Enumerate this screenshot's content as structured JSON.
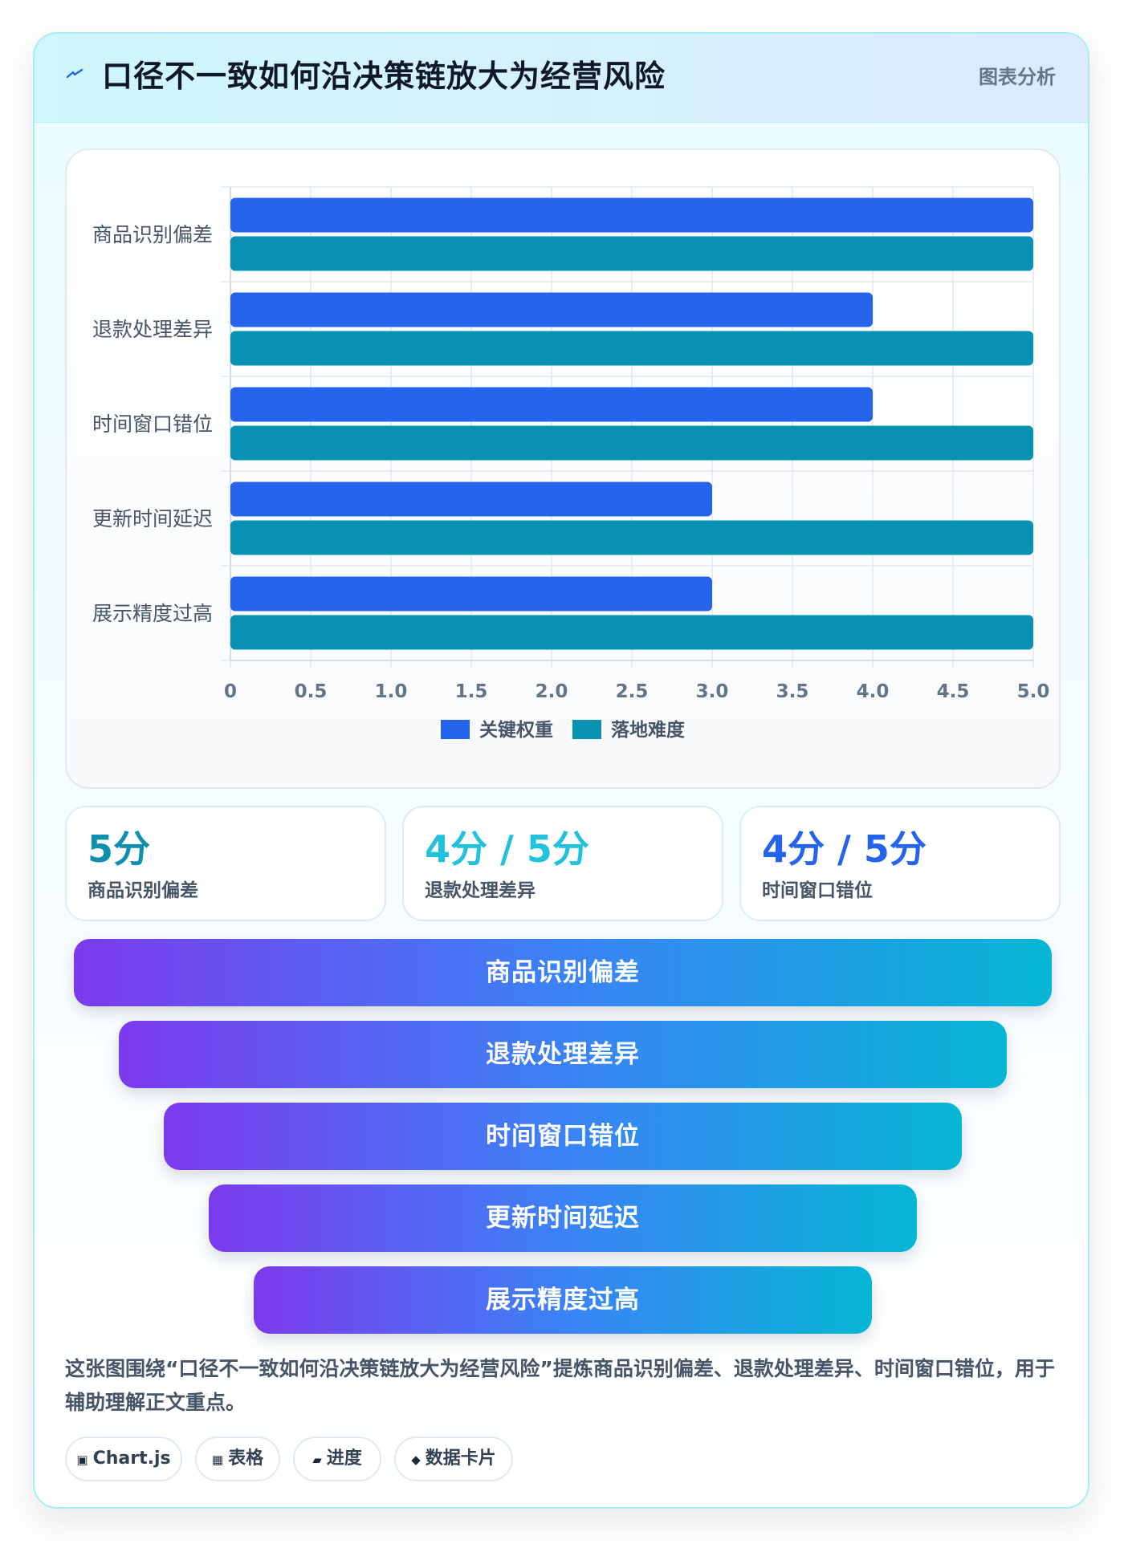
{
  "header": {
    "icon": "lightning-icon",
    "title": "口径不一致如何沿决策链放大为经营风险",
    "tag": "图表分析"
  },
  "chart_data": {
    "type": "bar",
    "orientation": "horizontal",
    "categories": [
      "商品识别偏差",
      "退款处理差异",
      "时间窗口错位",
      "更新时间延迟",
      "展示精度过高"
    ],
    "series": [
      {
        "name": "关键权重",
        "color": "#2563eb",
        "values": [
          5,
          4,
          4,
          3,
          3
        ]
      },
      {
        "name": "落地难度",
        "color": "#0891b2",
        "values": [
          5,
          5,
          5,
          5,
          5
        ]
      }
    ],
    "xlim": [
      0,
      5
    ],
    "xticks": [
      "0",
      "0.5",
      "1.0",
      "1.5",
      "2.0",
      "2.5",
      "3.0",
      "3.5",
      "4.0",
      "4.5",
      "5.0"
    ],
    "grid": true,
    "legend": "bottom"
  },
  "stats": [
    {
      "value": "5分",
      "label": "商品识别偏差",
      "color": "#0e8fae"
    },
    {
      "value": "4分 / 5分",
      "label": "退款处理差异",
      "color": "#22c1dc"
    },
    {
      "value": "4分 / 5分",
      "label": "时间窗口错位",
      "color": "#2563eb"
    }
  ],
  "funnel": [
    "商品识别偏差",
    "退款处理差异",
    "时间窗口错位",
    "更新时间延迟",
    "展示精度过高"
  ],
  "description": "这张图围绕“口径不一致如何沿决策链放大为经营风险”提炼商品识别偏差、退款处理差异、时间窗口错位，用于辅助理解正文重点。",
  "chips": [
    {
      "icon": "▣",
      "label": "Chart.js"
    },
    {
      "icon": "▦",
      "label": "表格"
    },
    {
      "icon": "▰",
      "label": "进度"
    },
    {
      "icon": "◆",
      "label": "数据卡片"
    }
  ]
}
